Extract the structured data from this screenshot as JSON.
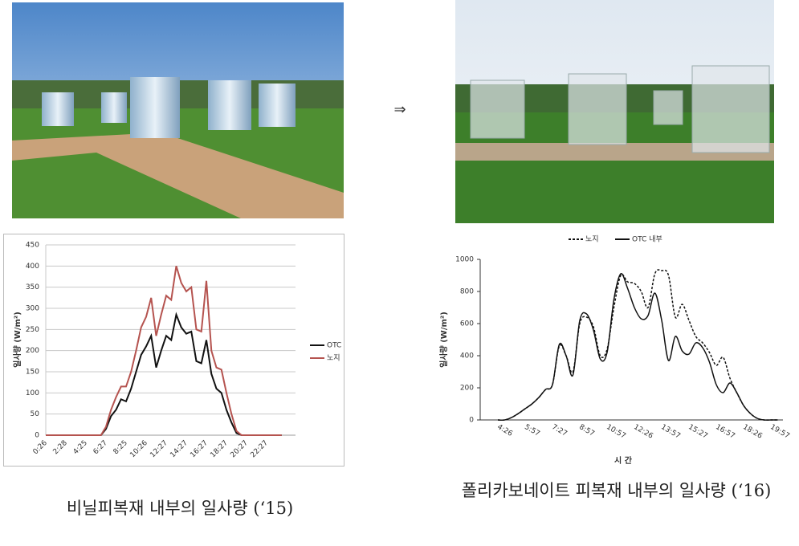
{
  "arrow": "⇒",
  "captions": [
    "비닐피복재 내부의 일사량 (‘15)",
    "폴리카보네이트 피복재 내부의 일사량 (‘16)"
  ],
  "chart_data": [
    {
      "type": "line",
      "y_label": "일사량 (W/m²)",
      "grid": true,
      "legend": "right",
      "smooth": false,
      "categories": [
        "0:26",
        null,
        null,
        null,
        "2:28",
        null,
        null,
        null,
        "4:25",
        null,
        null,
        null,
        "6:27",
        null,
        null,
        null,
        "8:25",
        null,
        null,
        null,
        "10:26",
        null,
        null,
        null,
        "12:27",
        null,
        null,
        null,
        "14:27",
        null,
        null,
        null,
        "16:27",
        null,
        null,
        null,
        "18:27",
        null,
        null,
        null,
        "20:27",
        null,
        null,
        null,
        "22:27",
        null,
        null,
        null
      ],
      "ylim": [
        0,
        450
      ],
      "yticks": [
        0,
        50,
        100,
        150,
        200,
        250,
        300,
        350,
        400,
        450
      ],
      "series": [
        {
          "name": "OTC",
          "color": "#111111",
          "line_style": "solid",
          "values": [
            0,
            0,
            0,
            0,
            0,
            0,
            0,
            0,
            0,
            0,
            0,
            0,
            15,
            45,
            60,
            85,
            80,
            110,
            150,
            190,
            210,
            235,
            160,
            200,
            235,
            225,
            285,
            255,
            240,
            245,
            175,
            170,
            225,
            145,
            110,
            100,
            60,
            30,
            5,
            0,
            0,
            0,
            0,
            0,
            0,
            0,
            0,
            0
          ]
        },
        {
          "name": "노지",
          "color": "#b5534f",
          "line_style": "solid",
          "values": [
            0,
            0,
            0,
            0,
            0,
            0,
            0,
            0,
            0,
            0,
            0,
            0,
            20,
            60,
            90,
            115,
            115,
            150,
            200,
            255,
            280,
            325,
            235,
            285,
            330,
            320,
            400,
            360,
            340,
            350,
            250,
            245,
            365,
            200,
            160,
            155,
            100,
            50,
            10,
            0,
            0,
            0,
            0,
            0,
            0,
            0,
            0,
            0
          ]
        }
      ]
    },
    {
      "type": "line",
      "y_label": "일사량 (W/m²)",
      "x_label": "시 간",
      "grid": false,
      "legend": "top",
      "smooth": true,
      "categories": [
        "4:26",
        null,
        null,
        null,
        "5:57",
        null,
        null,
        null,
        "7:27",
        null,
        null,
        null,
        "8:57",
        null,
        null,
        null,
        "10:57",
        null,
        null,
        null,
        "12:26",
        null,
        null,
        null,
        "13:57",
        null,
        null,
        null,
        "15:27",
        null,
        null,
        null,
        "16:57",
        null,
        null,
        null,
        "18:26",
        null,
        null,
        null,
        "19:57",
        null
      ],
      "ylim": [
        0,
        1000
      ],
      "yticks": [
        0,
        200,
        400,
        600,
        800,
        1000
      ],
      "series": [
        {
          "name": "노지",
          "color": "#111111",
          "line_style": "dashed",
          "values": [
            0,
            0,
            15,
            40,
            70,
            100,
            140,
            190,
            220,
            460,
            400,
            300,
            600,
            640,
            580,
            400,
            440,
            700,
            900,
            860,
            850,
            800,
            700,
            910,
            930,
            900,
            640,
            720,
            620,
            520,
            480,
            420,
            340,
            390,
            260,
            170,
            90,
            40,
            10,
            0,
            0,
            0
          ]
        },
        {
          "name": "OTC 내부",
          "color": "#111111",
          "line_style": "solid",
          "values": [
            0,
            0,
            15,
            40,
            70,
            100,
            140,
            190,
            220,
            470,
            400,
            280,
            620,
            660,
            560,
            380,
            420,
            750,
            910,
            820,
            700,
            630,
            650,
            790,
            620,
            370,
            520,
            430,
            410,
            480,
            450,
            360,
            220,
            170,
            230,
            170,
            90,
            40,
            10,
            0,
            0,
            0
          ]
        }
      ]
    }
  ]
}
